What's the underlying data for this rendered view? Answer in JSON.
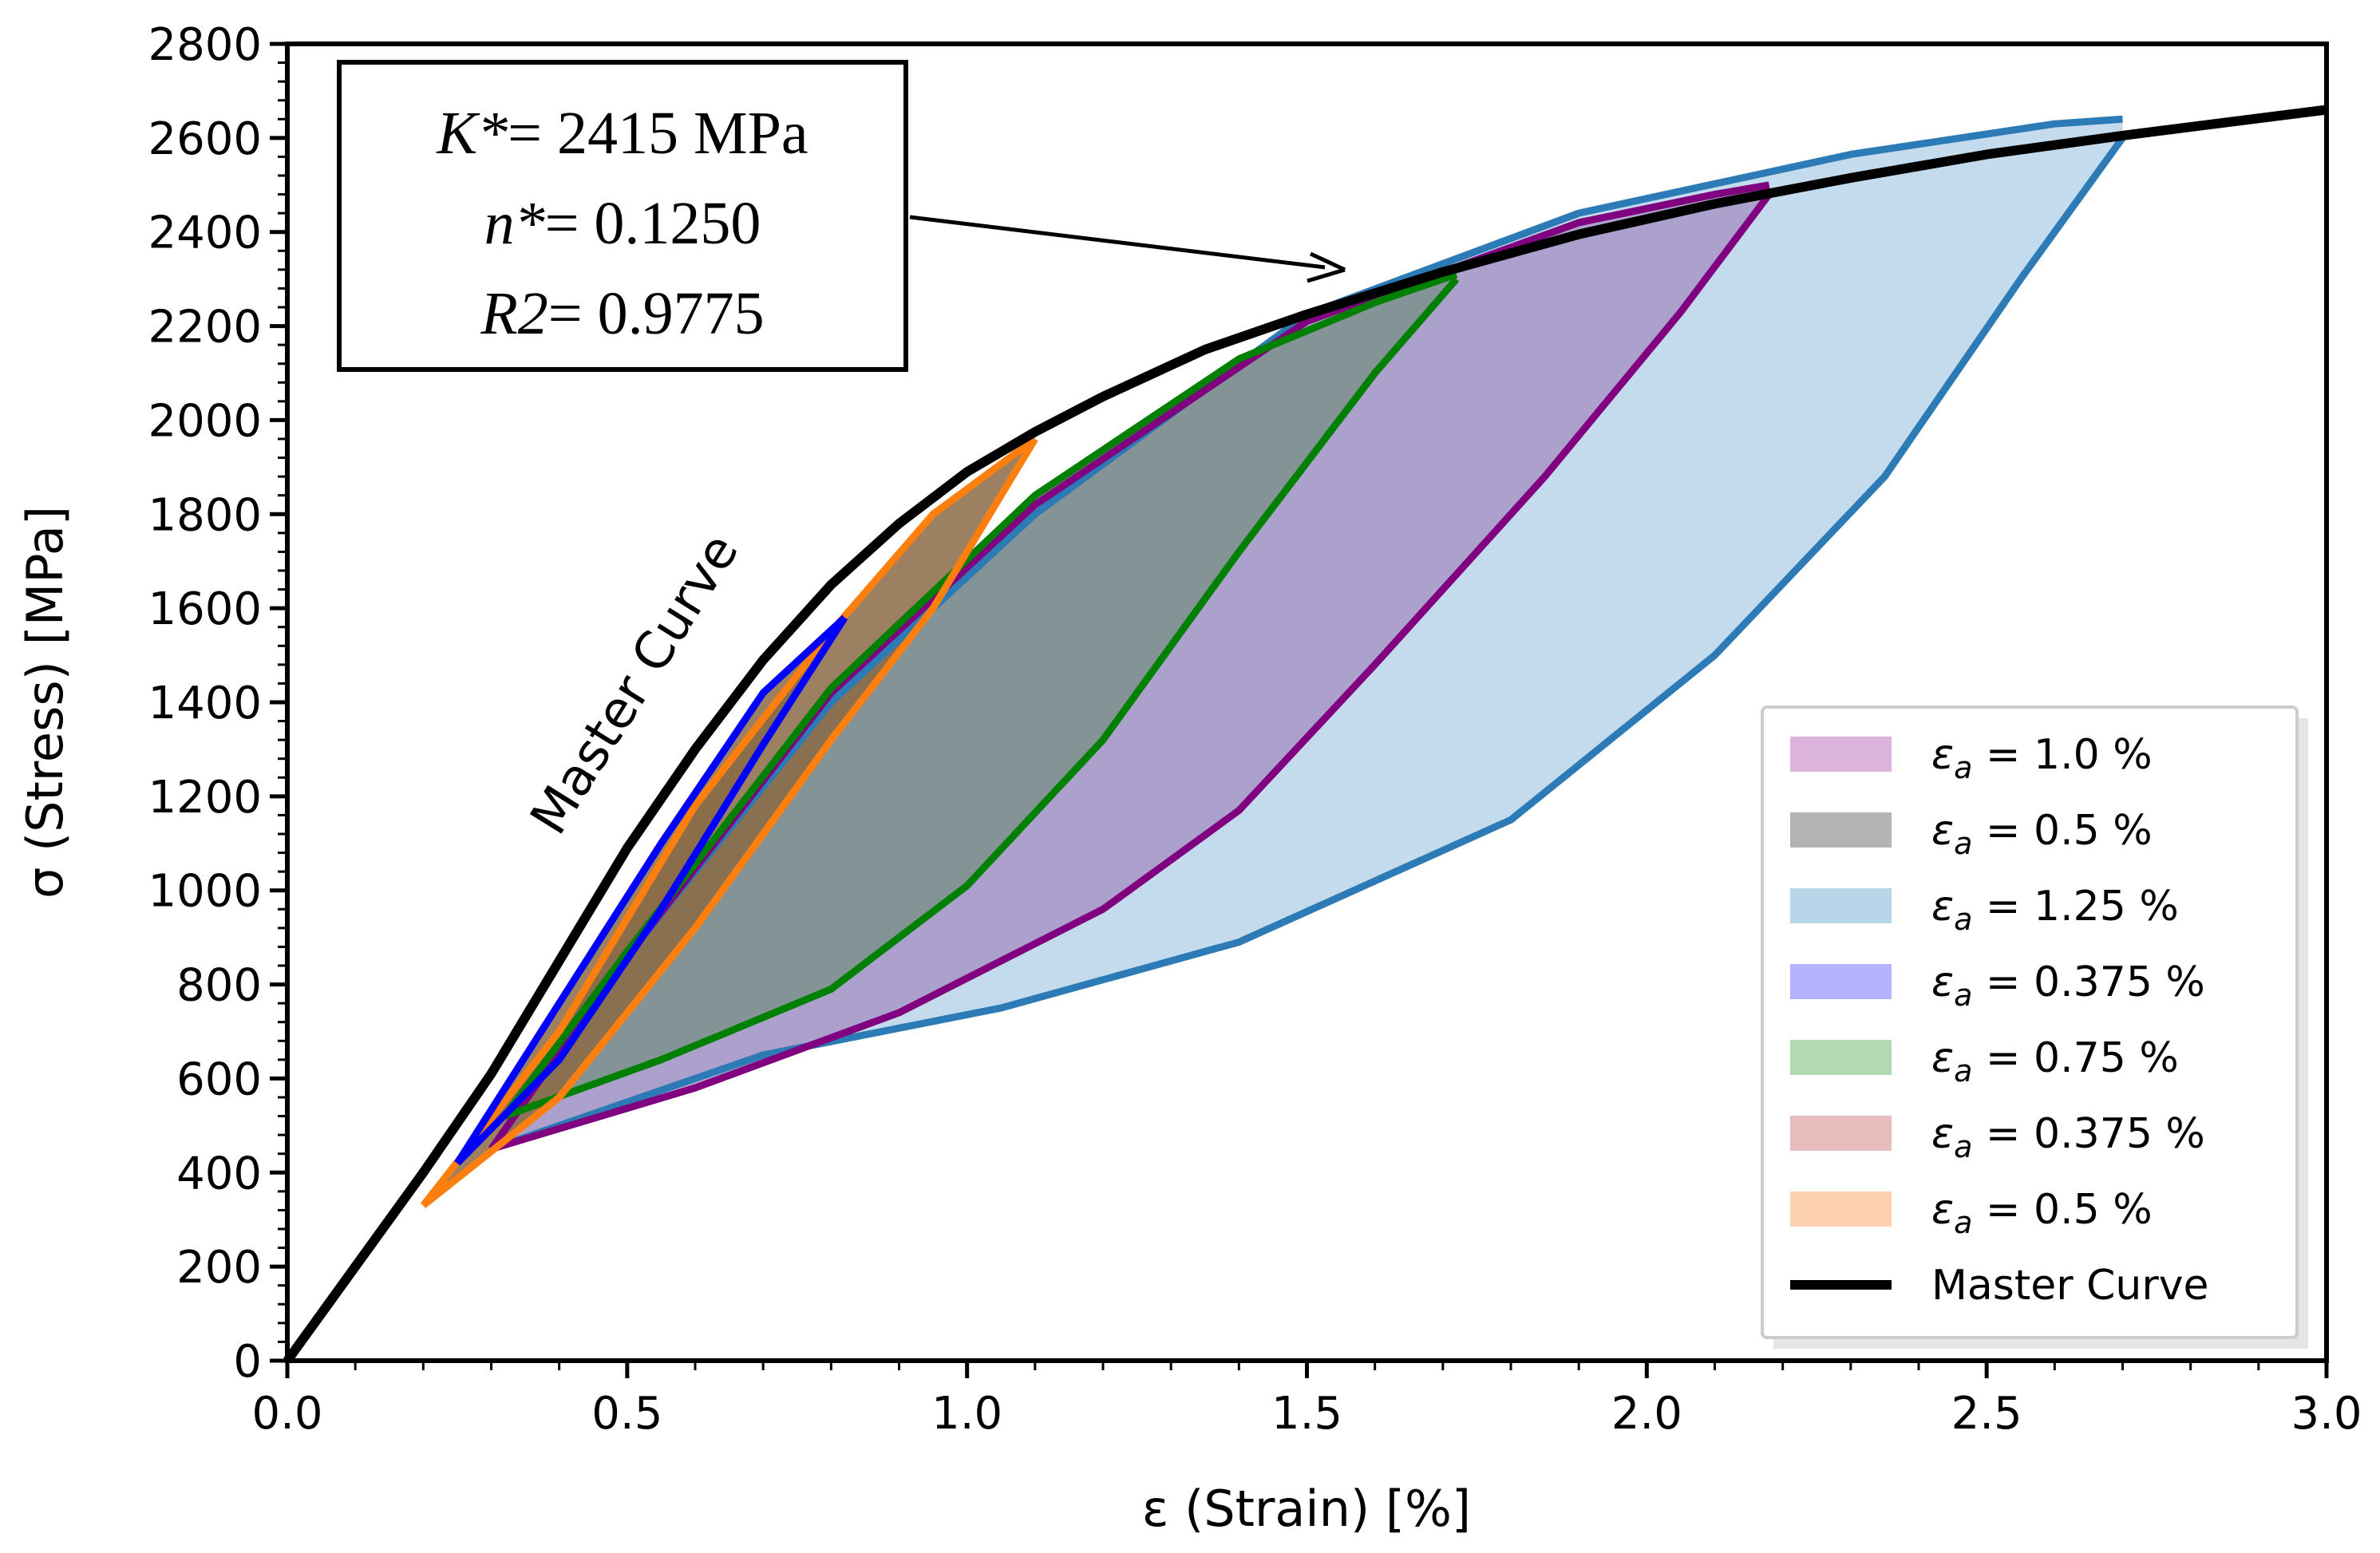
{
  "chart_data": {
    "type": "line",
    "title": "",
    "xlabel": "ε (Strain) [%]",
    "ylabel": "σ (Stress) [MPa]",
    "xlim": [
      0.0,
      3.0
    ],
    "ylim": [
      0,
      2800
    ],
    "x_ticks": [
      "0.0",
      "0.5",
      "1.0",
      "1.5",
      "2.0",
      "2.5",
      "3.0"
    ],
    "y_ticks": [
      "0",
      "200",
      "400",
      "600",
      "800",
      "1000",
      "1200",
      "1400",
      "1600",
      "1800",
      "2000",
      "2200",
      "2400",
      "2600",
      "2800"
    ],
    "annotation_box": {
      "k_label": "K*",
      "k_value": "= 2415 MPa",
      "n_label": "n*",
      "n_value": "= 0.1250",
      "r_label": "R2",
      "r_value": "= 0.9775"
    },
    "curve_label": "Master Curve",
    "master_curve": {
      "name": "Master Curve",
      "color": "#000000",
      "x": [
        0.0,
        0.1,
        0.2,
        0.3,
        0.4,
        0.5,
        0.6,
        0.7,
        0.8,
        0.9,
        1.0,
        1.1,
        1.2,
        1.35,
        1.5,
        1.7,
        1.9,
        2.1,
        2.3,
        2.5,
        2.7,
        3.0
      ],
      "y": [
        0,
        200,
        400,
        610,
        850,
        1090,
        1300,
        1490,
        1650,
        1780,
        1890,
        1975,
        2050,
        2150,
        2225,
        2315,
        2395,
        2460,
        2515,
        2565,
        2605,
        2660
      ]
    },
    "loops": [
      {
        "name": "εa = 1.25 %",
        "line_color": "#2c7bb6",
        "fill_color": "#b9d5e9",
        "upper": {
          "x": [
            0.3,
            0.5,
            0.8,
            1.1,
            1.5,
            1.9,
            2.3,
            2.6,
            2.7
          ],
          "y": [
            450,
            860,
            1400,
            1800,
            2225,
            2440,
            2565,
            2630,
            2640
          ]
        },
        "lower": {
          "x": [
            0.3,
            0.7,
            1.05,
            1.4,
            1.8,
            2.1,
            2.35,
            2.55,
            2.7
          ],
          "y": [
            450,
            650,
            750,
            890,
            1150,
            1500,
            1880,
            2300,
            2600
          ]
        }
      },
      {
        "name": "εa = 1.0 %",
        "line_color": "#800080",
        "fill_color": "#a895c8",
        "upper": {
          "x": [
            0.3,
            0.5,
            0.8,
            1.1,
            1.5,
            1.9,
            2.1,
            2.18
          ],
          "y": [
            450,
            860,
            1420,
            1820,
            2210,
            2420,
            2480,
            2500
          ]
        },
        "lower": {
          "x": [
            0.3,
            0.6,
            0.9,
            1.2,
            1.4,
            1.6,
            1.85,
            2.05,
            2.18
          ],
          "y": [
            450,
            580,
            740,
            960,
            1170,
            1480,
            1880,
            2230,
            2480
          ]
        }
      },
      {
        "name": "εa = 0.75 %",
        "line_color": "#008000",
        "fill_color": "#7c918b",
        "upper": {
          "x": [
            0.32,
            0.5,
            0.8,
            1.1,
            1.4,
            1.6,
            1.72
          ],
          "y": [
            520,
            870,
            1430,
            1840,
            2130,
            2250,
            2310
          ]
        },
        "lower": {
          "x": [
            0.32,
            0.55,
            0.8,
            1.0,
            1.2,
            1.4,
            1.6,
            1.72
          ],
          "y": [
            520,
            640,
            790,
            1010,
            1320,
            1720,
            2100,
            2300
          ]
        }
      },
      {
        "name": "εa = 0.5 %",
        "line_color": "#ff7f0e",
        "fill_color": "#8a6a45",
        "upper": {
          "x": [
            0.2,
            0.4,
            0.6,
            0.8,
            0.95,
            1.1
          ],
          "y": [
            330,
            700,
            1180,
            1550,
            1800,
            1960
          ]
        },
        "lower": {
          "x": [
            0.2,
            0.4,
            0.6,
            0.8,
            0.95,
            1.1
          ],
          "y": [
            330,
            560,
            920,
            1320,
            1600,
            1960
          ]
        }
      },
      {
        "name": "εa = 0.375 %",
        "line_color": "#0000ff",
        "fill_color": "#8a6a45",
        "upper": {
          "x": [
            0.25,
            0.4,
            0.55,
            0.7,
            0.82
          ],
          "y": [
            420,
            760,
            1100,
            1420,
            1580
          ]
        },
        "lower": {
          "x": [
            0.25,
            0.4,
            0.55,
            0.7,
            0.82
          ],
          "y": [
            420,
            640,
            960,
            1310,
            1580
          ]
        }
      }
    ],
    "legend": [
      {
        "label_main": "ε",
        "label_sub": "a",
        "label_rest": " = 1.0 %",
        "swatch": "#dcb3dc",
        "kind": "patch"
      },
      {
        "label_main": "ε",
        "label_sub": "a",
        "label_rest": " = 0.5 %",
        "swatch": "#b3b3b3",
        "kind": "patch"
      },
      {
        "label_main": "ε",
        "label_sub": "a",
        "label_rest": " = 1.25 %",
        "swatch": "#b9d5e9",
        "kind": "patch"
      },
      {
        "label_main": "ε",
        "label_sub": "a",
        "label_rest": " = 0.375 %",
        "swatch": "#b3b3ff",
        "kind": "patch"
      },
      {
        "label_main": "ε",
        "label_sub": "a",
        "label_rest": " = 0.75 %",
        "swatch": "#b3d9b3",
        "kind": "patch"
      },
      {
        "label_main": "ε",
        "label_sub": "a",
        "label_rest": " = 0.375 %",
        "swatch": "#e6bcbc",
        "kind": "patch"
      },
      {
        "label_main": "ε",
        "label_sub": "a",
        "label_rest": " = 0.5 %",
        "swatch": "#fdd0b0",
        "kind": "patch"
      },
      {
        "label_main": "Master Curve",
        "label_sub": "",
        "label_rest": "",
        "swatch": "#000000",
        "kind": "line"
      }
    ],
    "legend_position": "lower-right"
  }
}
